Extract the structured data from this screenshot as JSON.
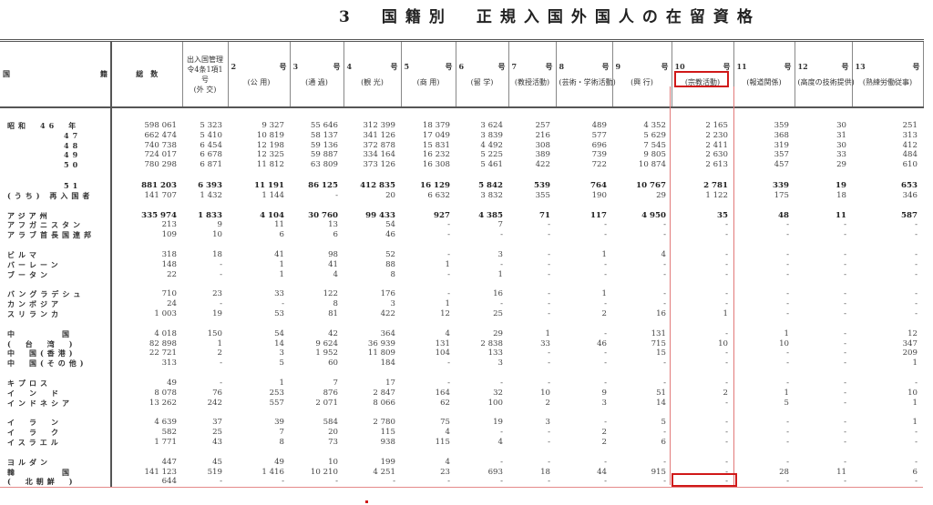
{
  "title": "3　国籍別　正規入国外国人の在留資格",
  "headers": [
    {
      "num": "国",
      "sub": "籍"
    },
    {
      "num": "総",
      "sub": "数"
    },
    {
      "num": "出入国管理令4条1項1号",
      "sub": "(外 交)"
    },
    {
      "num": "2",
      "hao": "号",
      "sub": "(公 用)"
    },
    {
      "num": "3",
      "hao": "号",
      "sub": "(通 過)"
    },
    {
      "num": "4",
      "hao": "号",
      "sub": "(観 光)"
    },
    {
      "num": "5",
      "hao": "号",
      "sub": "(商 用)"
    },
    {
      "num": "6",
      "hao": "号",
      "sub": "(留 学)"
    },
    {
      "num": "7",
      "hao": "号",
      "sub": "(教授活動)"
    },
    {
      "num": "8",
      "hao": "号",
      "sub": "(芸術・学術活動)"
    },
    {
      "num": "9",
      "hao": "号",
      "sub": "(興 行)"
    },
    {
      "num": "10",
      "hao": "号",
      "sub": "(宗教活動)"
    },
    {
      "num": "11",
      "hao": "号",
      "sub": "(報道関係)"
    },
    {
      "num": "12",
      "hao": "号",
      "sub": "(高度の技術提供)"
    },
    {
      "num": "13",
      "hao": "号",
      "sub": "(熟練労働従事)"
    }
  ],
  "highlight": {
    "column": "10号 (宗教活動)",
    "cell_row": "韓国",
    "color": "#d01818"
  },
  "groups": [
    {
      "bold": false,
      "rows": [
        {
          "label": "昭和　46　年",
          "values": [
            "598 061",
            "5 323",
            "9 327",
            "55 646",
            "312 399",
            "18 379",
            "3 624",
            "257",
            "489",
            "4 352",
            "2 165",
            "359",
            "30",
            "251"
          ]
        },
        {
          "label": "47",
          "values": [
            "662 474",
            "5 410",
            "10 819",
            "58 137",
            "341 126",
            "17 049",
            "3 839",
            "216",
            "577",
            "5 629",
            "2 230",
            "368",
            "31",
            "313"
          ]
        },
        {
          "label": "48",
          "values": [
            "740 738",
            "6 454",
            "12 198",
            "59 136",
            "372 878",
            "15 831",
            "4 492",
            "308",
            "696",
            "7 545",
            "2 411",
            "319",
            "30",
            "412"
          ]
        },
        {
          "label": "49",
          "values": [
            "724 017",
            "6 678",
            "12 325",
            "59 887",
            "334 164",
            "16 232",
            "5 225",
            "389",
            "739",
            "9 805",
            "2 630",
            "357",
            "33",
            "484"
          ]
        },
        {
          "label": "50",
          "values": [
            "780 298",
            "6 871",
            "11 812",
            "63 809",
            "373 126",
            "16 308",
            "5 461",
            "422",
            "722",
            "10 874",
            "2 613",
            "457",
            "29",
            "610"
          ]
        }
      ]
    },
    {
      "bold": false,
      "rows": [
        {
          "label": "51",
          "values": [
            "881 203",
            "6 393",
            "11 191",
            "86 125",
            "412 835",
            "16 129",
            "5 842",
            "539",
            "764",
            "10 767",
            "2 781",
            "339",
            "19",
            "653"
          ],
          "bold": true
        },
        {
          "label": "(うち) 再入国者",
          "values": [
            "141 707",
            "1 432",
            "1 144",
            "-",
            "20",
            "6 632",
            "3 832",
            "355",
            "190",
            "29",
            "1 122",
            "175",
            "18",
            "346"
          ]
        }
      ]
    },
    {
      "bold": false,
      "rows": [
        {
          "label": "アジア州",
          "values": [
            "335 974",
            "1 833",
            "4 104",
            "30 760",
            "99 433",
            "927",
            "4 385",
            "71",
            "117",
            "4 950",
            "35",
            "48",
            "11",
            "587"
          ],
          "bold": true
        },
        {
          "label": "アフガニスタン",
          "values": [
            "213",
            "9",
            "11",
            "13",
            "54",
            "-",
            "7",
            "-",
            "-",
            "-",
            "-",
            "-",
            "-",
            "-"
          ]
        },
        {
          "label": "アラブ首長国連邦",
          "values": [
            "109",
            "10",
            "6",
            "6",
            "46",
            "-",
            "-",
            "-",
            "-",
            "-",
            "-",
            "-",
            "-",
            "-"
          ]
        }
      ]
    },
    {
      "bold": false,
      "rows": [
        {
          "label": "ビルマ",
          "values": [
            "318",
            "18",
            "41",
            "98",
            "52",
            "-",
            "3",
            "-",
            "1",
            "4",
            "-",
            "-",
            "-",
            "-"
          ]
        },
        {
          "label": "バーレーン",
          "values": [
            "148",
            "-",
            "1",
            "41",
            "88",
            "1",
            "-",
            "-",
            "-",
            "-",
            "-",
            "-",
            "-",
            "-"
          ]
        },
        {
          "label": "ブータン",
          "values": [
            "22",
            "-",
            "1",
            "4",
            "8",
            "-",
            "1",
            "-",
            "-",
            "-",
            "-",
            "-",
            "-",
            "-"
          ]
        }
      ]
    },
    {
      "bold": false,
      "rows": [
        {
          "label": "バングラデシュ",
          "values": [
            "710",
            "23",
            "33",
            "122",
            "176",
            "-",
            "16",
            "-",
            "1",
            "-",
            "-",
            "-",
            "-",
            "-"
          ]
        },
        {
          "label": "カンボジア",
          "values": [
            "24",
            "-",
            "-",
            "8",
            "3",
            "1",
            "-",
            "-",
            "-",
            "-",
            "-",
            "-",
            "-",
            "-"
          ]
        },
        {
          "label": "スリランカ",
          "values": [
            "1 003",
            "19",
            "53",
            "81",
            "422",
            "12",
            "25",
            "-",
            "2",
            "16",
            "1",
            "-",
            "-",
            "-"
          ]
        }
      ]
    },
    {
      "bold": false,
      "rows": [
        {
          "label": "中　　　　国",
          "values": [
            "4 018",
            "150",
            "54",
            "42",
            "364",
            "4",
            "29",
            "1",
            "-",
            "131",
            "-",
            "1",
            "-",
            "12"
          ]
        },
        {
          "label": "(　台　湾　)",
          "values": [
            "82 898",
            "1",
            "14",
            "9 624",
            "36 939",
            "131",
            "2 838",
            "33",
            "46",
            "715",
            "10",
            "10",
            "-",
            "347"
          ]
        },
        {
          "label": "中　国(香港)",
          "values": [
            "22 721",
            "2",
            "3",
            "1 952",
            "11 809",
            "104",
            "133",
            "-",
            "-",
            "15",
            "-",
            "-",
            "-",
            "209"
          ]
        },
        {
          "label": "中　国(その他)",
          "values": [
            "313",
            "-",
            "5",
            "60",
            "184",
            "-",
            "3",
            "-",
            "-",
            "-",
            "-",
            "-",
            "-",
            "1"
          ]
        }
      ]
    },
    {
      "bold": false,
      "rows": [
        {
          "label": "キプロス",
          "values": [
            "49",
            "-",
            "1",
            "7",
            "17",
            "-",
            "-",
            "-",
            "-",
            "-",
            "-",
            "-",
            "-",
            "-"
          ]
        },
        {
          "label": "イ　ン　ド",
          "values": [
            "8 078",
            "76",
            "253",
            "876",
            "2 847",
            "164",
            "32",
            "10",
            "9",
            "51",
            "2",
            "1",
            "-",
            "10"
          ]
        },
        {
          "label": "インドネシア",
          "values": [
            "13 262",
            "242",
            "557",
            "2 071",
            "8 066",
            "62",
            "100",
            "2",
            "3",
            "14",
            "-",
            "5",
            "-",
            "1"
          ]
        }
      ]
    },
    {
      "bold": false,
      "rows": [
        {
          "label": "イ　ラ　ン",
          "values": [
            "4 639",
            "37",
            "39",
            "584",
            "2 780",
            "75",
            "19",
            "3",
            "-",
            "5",
            "-",
            "-",
            "-",
            "1"
          ]
        },
        {
          "label": "イ　ラ　ク",
          "values": [
            "582",
            "25",
            "7",
            "20",
            "115",
            "4",
            "-",
            "-",
            "2",
            "-",
            "-",
            "-",
            "-",
            "-"
          ]
        },
        {
          "label": "イスラエル",
          "values": [
            "1 771",
            "43",
            "8",
            "73",
            "938",
            "115",
            "4",
            "-",
            "2",
            "6",
            "-",
            "-",
            "-",
            "-"
          ]
        }
      ]
    },
    {
      "bold": false,
      "rows": [
        {
          "label": "ヨルダン",
          "values": [
            "447",
            "45",
            "49",
            "10",
            "199",
            "4",
            "-",
            "-",
            "-",
            "-",
            "-",
            "-",
            "-",
            "-"
          ]
        },
        {
          "label": "韓　　　　国",
          "values": [
            "141 123",
            "519",
            "1 416",
            "10 210",
            "4 251",
            "23",
            "693",
            "18",
            "44",
            "915",
            "-",
            "28",
            "11",
            "6"
          ]
        },
        {
          "label": "(　北朝鮮　)",
          "values": [
            "644",
            "-",
            "-",
            "-",
            "-",
            "-",
            "-",
            "-",
            "-",
            "-",
            "-",
            "-",
            "-",
            "-"
          ]
        }
      ]
    }
  ]
}
